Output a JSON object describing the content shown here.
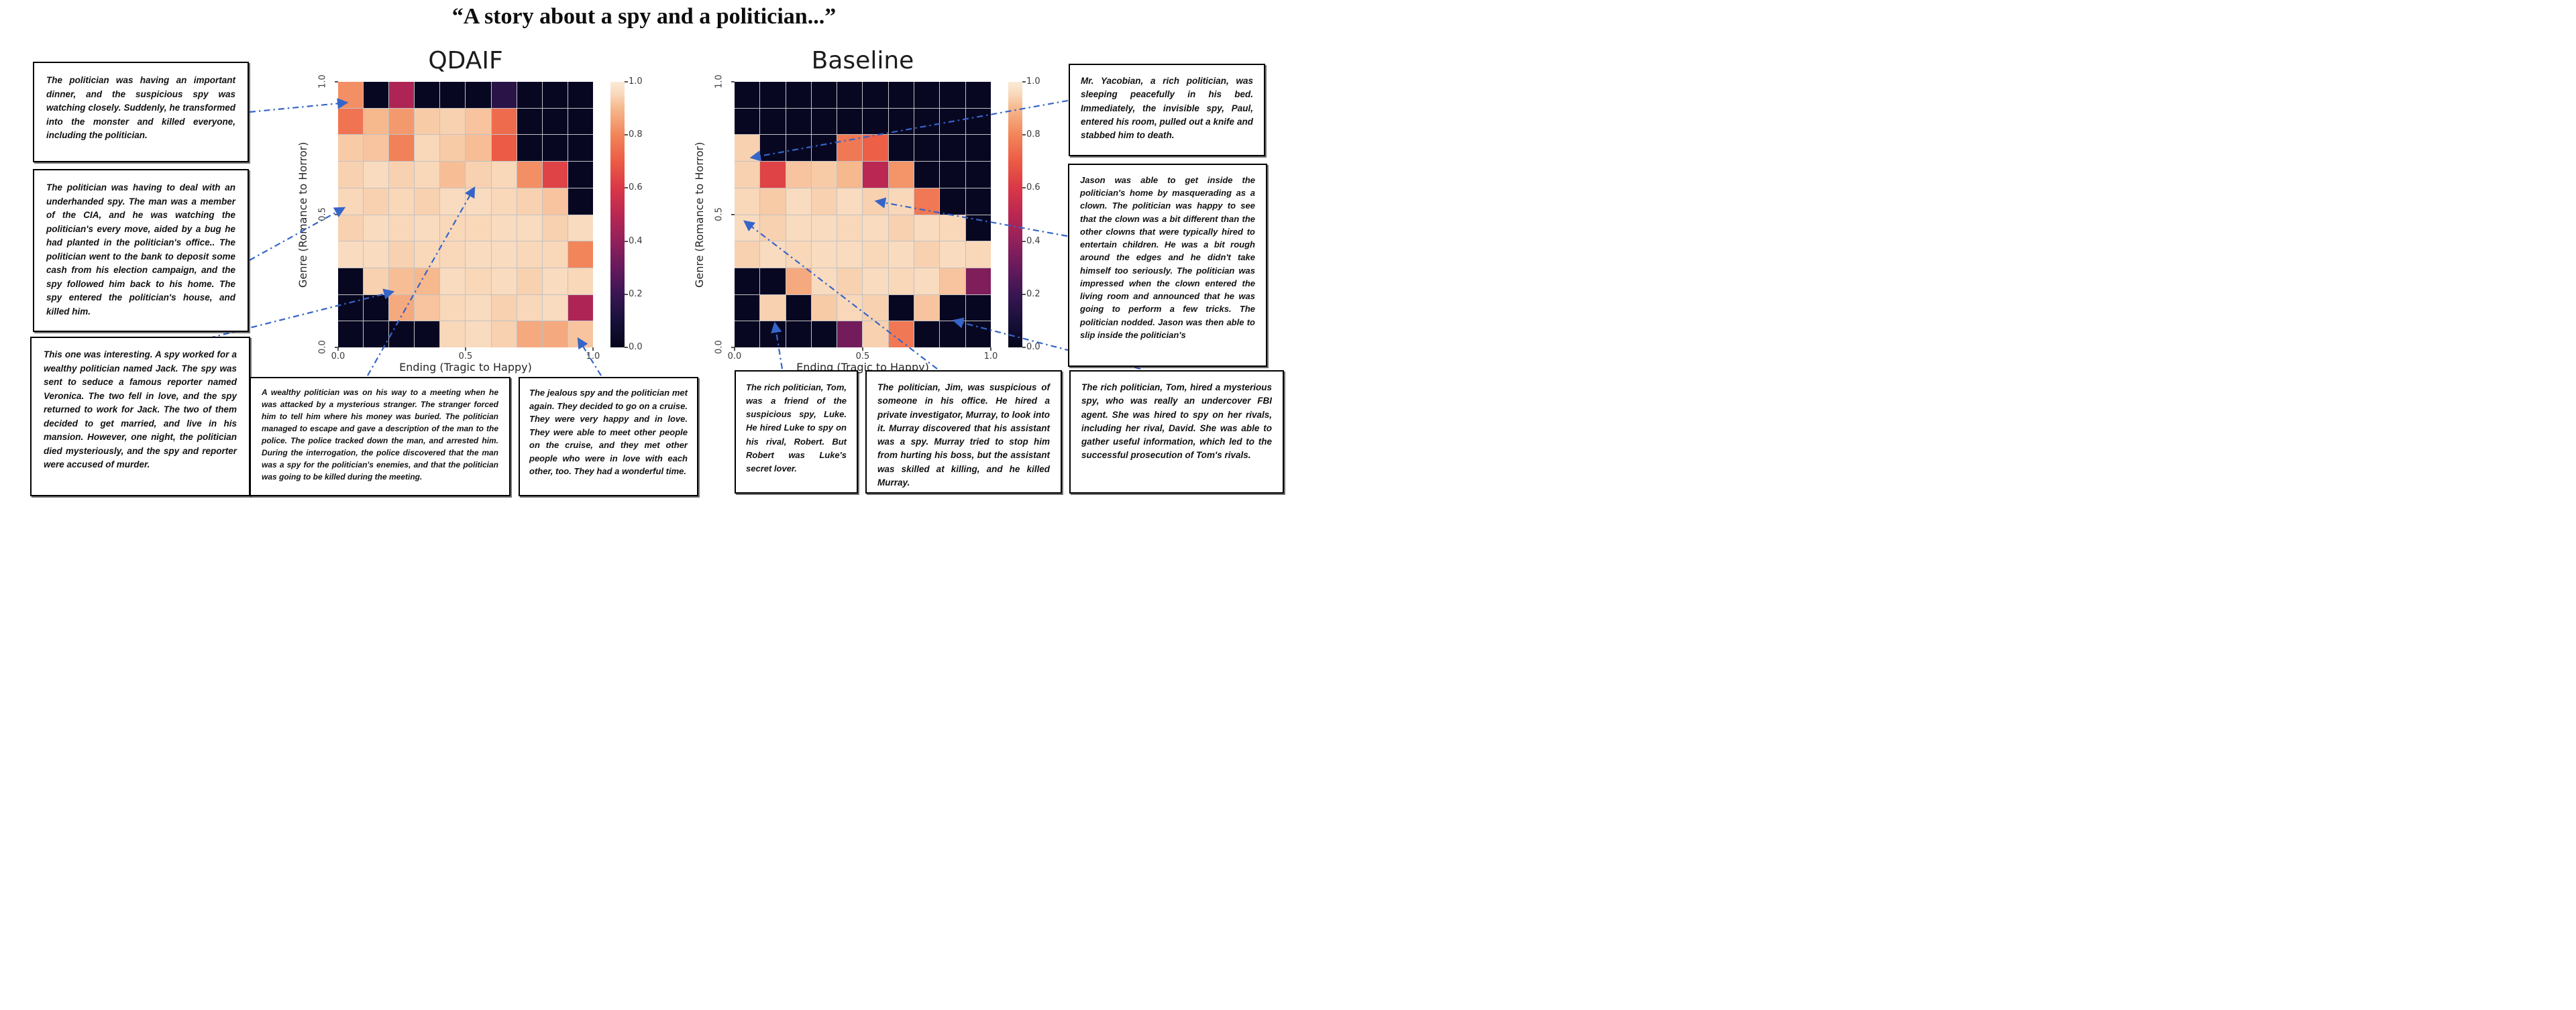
{
  "figure_title": "“A story about a spy and a politician...”",
  "accent_color": "#3565C8",
  "grid_line_color": "#c2c2c2",
  "panels": [
    {
      "title": "QDAIF",
      "xlabel": "Ending (Tragic to Happy)",
      "ylabel": "Genre (Romance to Horror)",
      "xticks": [
        "0.0",
        "0.5",
        "1.0"
      ],
      "yticks": [
        "1.0",
        "0.5",
        "0.0"
      ],
      "colorbar_ticks": [
        "1.0",
        "0.8",
        "0.6",
        "0.4",
        "0.2",
        "0.0"
      ]
    },
    {
      "title": "Baseline",
      "xlabel": "Ending (Tragic to Happy)",
      "ylabel": "Genre (Romance to Horror)",
      "xticks": [
        "0.0",
        "0.5",
        "1.0"
      ],
      "yticks": [
        "1.0",
        "0.5",
        "0.0"
      ],
      "colorbar_ticks": [
        "1.0",
        "0.8",
        "0.6",
        "0.4",
        "0.2",
        "0.0"
      ]
    }
  ],
  "chart_data": [
    {
      "type": "heatmap",
      "title": "QDAIF",
      "xlabel": "Ending (Tragic to Happy)",
      "ylabel": "Genre (Romance to Horror)",
      "x_range": [
        0.0,
        1.0
      ],
      "y_range": [
        0.0,
        1.0
      ],
      "color_range": [
        0.0,
        1.0
      ],
      "colormap": "rocket",
      "grid_size": [
        10,
        10
      ],
      "rows_top_to_bottom": [
        [
          0.82,
          0.02,
          0.47,
          0.02,
          0.02,
          0.02,
          0.15,
          0.02,
          0.02,
          0.02
        ],
        [
          0.76,
          0.9,
          0.84,
          0.93,
          0.94,
          0.92,
          0.74,
          0.02,
          0.02,
          0.02
        ],
        [
          0.93,
          0.92,
          0.79,
          0.95,
          0.93,
          0.91,
          0.7,
          0.02,
          0.02,
          0.02
        ],
        [
          0.94,
          0.96,
          0.94,
          0.95,
          0.91,
          0.94,
          0.95,
          0.82,
          0.63,
          0.02
        ],
        [
          0.95,
          0.94,
          0.95,
          0.94,
          0.96,
          0.96,
          0.95,
          0.94,
          0.92,
          0.02
        ],
        [
          0.94,
          0.96,
          0.95,
          0.96,
          0.95,
          0.95,
          0.96,
          0.96,
          0.94,
          0.96
        ],
        [
          0.96,
          0.96,
          0.94,
          0.95,
          0.95,
          0.96,
          0.96,
          0.95,
          0.95,
          0.8
        ],
        [
          0.02,
          0.94,
          0.91,
          0.9,
          0.96,
          0.95,
          0.96,
          0.94,
          0.96,
          0.95
        ],
        [
          0.02,
          0.02,
          0.87,
          0.92,
          0.95,
          0.96,
          0.94,
          0.95,
          0.96,
          0.47
        ],
        [
          0.02,
          0.02,
          0.02,
          0.02,
          0.95,
          0.96,
          0.94,
          0.87,
          0.87,
          0.92
        ]
      ]
    },
    {
      "type": "heatmap",
      "title": "Baseline",
      "xlabel": "Ending (Tragic to Happy)",
      "ylabel": "Genre (Romance to Horror)",
      "x_range": [
        0.0,
        1.0
      ],
      "y_range": [
        0.0,
        1.0
      ],
      "color_range": [
        0.0,
        1.0
      ],
      "colormap": "rocket",
      "grid_size": [
        10,
        10
      ],
      "rows_top_to_bottom": [
        [
          0.02,
          0.02,
          0.02,
          0.02,
          0.02,
          0.02,
          0.02,
          0.02,
          0.02,
          0.02
        ],
        [
          0.02,
          0.02,
          0.02,
          0.02,
          0.02,
          0.02,
          0.02,
          0.02,
          0.02,
          0.02
        ],
        [
          0.94,
          0.02,
          0.02,
          0.02,
          0.77,
          0.71,
          0.02,
          0.02,
          0.02,
          0.02
        ],
        [
          0.94,
          0.63,
          0.92,
          0.93,
          0.9,
          0.5,
          0.83,
          0.02,
          0.02,
          0.02
        ],
        [
          0.95,
          0.93,
          0.96,
          0.94,
          0.96,
          0.94,
          0.95,
          0.77,
          0.02,
          0.02
        ],
        [
          0.96,
          0.94,
          0.96,
          0.96,
          0.95,
          0.96,
          0.94,
          0.96,
          0.95,
          0.02
        ],
        [
          0.94,
          0.96,
          0.95,
          0.96,
          0.96,
          0.95,
          0.96,
          0.94,
          0.96,
          0.95
        ],
        [
          0.02,
          0.02,
          0.87,
          0.96,
          0.94,
          0.96,
          0.95,
          0.96,
          0.92,
          0.36
        ],
        [
          0.02,
          0.94,
          0.02,
          0.93,
          0.95,
          0.94,
          0.02,
          0.92,
          0.02,
          0.02
        ],
        [
          0.02,
          0.02,
          0.02,
          0.02,
          0.33,
          0.94,
          0.77,
          0.02,
          0.02,
          0.02
        ]
      ]
    }
  ],
  "colormap_stops": [
    [
      0.0,
      "#04051C"
    ],
    [
      0.1,
      "#18103A"
    ],
    [
      0.2,
      "#3A1653"
    ],
    [
      0.3,
      "#661A5C"
    ],
    [
      0.4,
      "#92215B"
    ],
    [
      0.5,
      "#BA2752"
    ],
    [
      0.6,
      "#D93847"
    ],
    [
      0.7,
      "#EC5B45"
    ],
    [
      0.8,
      "#F2855A"
    ],
    [
      0.9,
      "#F6B88D"
    ],
    [
      0.95,
      "#F9D7B9"
    ],
    [
      1.0,
      "#FBEBD8"
    ]
  ],
  "stories": {
    "left_top": "The politician was having an important dinner, and the suspicious spy was watching closely. Suddenly, he transformed into the monster and killed everyone, including the politician.",
    "left_mid": "The politician was having to deal with an underhanded spy. The man was a member of the CIA, and he was watching the politician's every move, aided by a bug he had planted in the politician's office.. The politician went to the bank to deposit some cash from his election campaign, and the spy followed him back to his home. The spy entered the politician's house, and killed him.",
    "left_bottom": "This one was interesting. A spy worked for a wealthy politician named Jack. The spy was sent to seduce a famous reporter named Veronica. The two fell in love, and the spy returned to work for Jack. The two of them decided to get married, and live in his mansion. However, one night, the politician died mysteriously, and the spy and reporter were accused of murder.",
    "bottom_q1": "A wealthy politician was on his way to a meeting when he was attacked by a mysterious stranger. The stranger forced him to tell him where his money was buried. The politician managed to escape and gave a description of the man to the police. The police tracked down the man, and arrested him. During the interrogation, the police discovered that the man was a spy for the politician's enemies, and that the politician was going to be killed during the meeting.",
    "bottom_q2": "The jealous spy and the politician met again. They decided to go on a cruise. They were very happy and in love. They were able to meet other people on the cruise, and they met other people who were in love with each other, too. They had a wonderful time.",
    "right_top": "Mr. Yacobian, a rich politician, was sleeping peacefully in his bed. Immediately, the invisible spy, Paul, entered his room, pulled out a knife and stabbed him to death.",
    "right_tall": "Jason was able to get inside the politician's home by masquerading as a clown. The politician was happy to see that the clown was a bit different than the other clowns that were typically hired to entertain children. He was a bit rough around the edges and he didn't take himself too seriously. The politician was impressed when the clown entered the living room and announced that he was going to perform a few tricks. The politician nodded. Jason was then able to slip inside the politician's",
    "bottom_b1": "The rich politician, Tom, was a friend of the suspicious spy, Luke. He hired Luke to spy on his rival, Robert. But Robert was Luke's secret lover.",
    "bottom_b2": "The politician, Jim, was suspicious of someone in his office. He hired a private investigator, Murray, to look into it. Murray discovered that his assistant was a spy. Murray tried to stop him from hurting his boss, but the assistant was skilled at killing, and he killed Murray.",
    "bottom_b3": "The rich politician, Tom, hired a mysterious spy, who was really an undercover FBI agent. She was hired to spy on her rivals, including her rival, David. She was able to gather useful information, which led to the successful prosecution of Tom's rivals."
  },
  "arrows": [
    {
      "panel": "QDAIF",
      "from": [
        372,
        167
      ],
      "to": [
        517,
        153
      ]
    },
    {
      "panel": "QDAIF",
      "from": [
        372,
        388
      ],
      "to": [
        513,
        310
      ]
    },
    {
      "panel": "QDAIF",
      "from": [
        312,
        504
      ],
      "to": [
        586,
        435
      ]
    },
    {
      "panel": "QDAIF",
      "from": [
        548,
        560
      ],
      "to": [
        707,
        280
      ]
    },
    {
      "panel": "QDAIF",
      "from": [
        896,
        560
      ],
      "to": [
        862,
        505
      ]
    },
    {
      "panel": "Baseline",
      "from": [
        1592,
        150
      ],
      "to": [
        1120,
        235
      ]
    },
    {
      "panel": "Baseline",
      "from": [
        1591,
        352
      ],
      "to": [
        1306,
        300
      ]
    },
    {
      "panel": "Baseline",
      "from": [
        1166,
        550
      ],
      "to": [
        1155,
        482
      ]
    },
    {
      "panel": "Baseline",
      "from": [
        1397,
        550
      ],
      "to": [
        1110,
        330
      ]
    },
    {
      "panel": "Baseline",
      "from": [
        1700,
        550
      ],
      "to": [
        1422,
        478
      ]
    }
  ]
}
